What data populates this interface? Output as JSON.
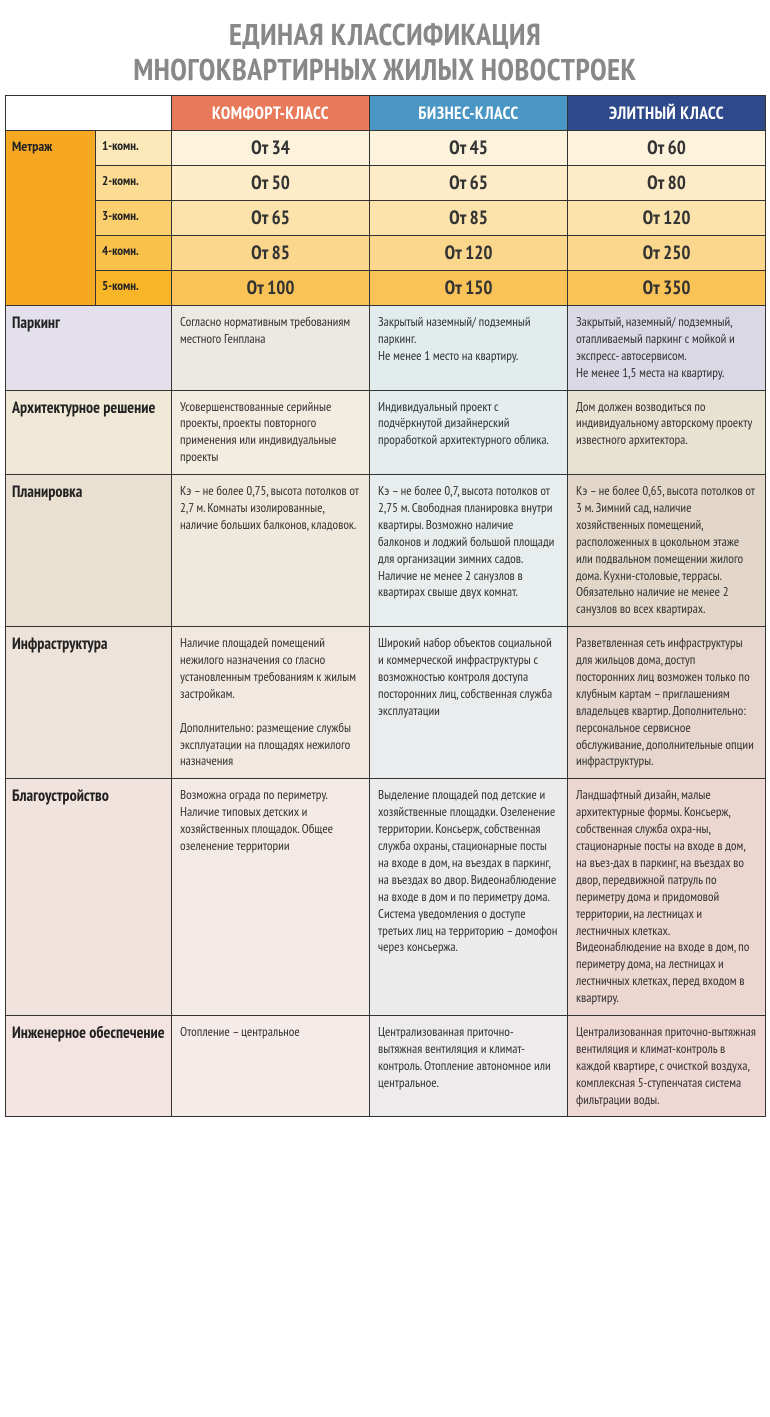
{
  "title_line1": "ЕДИНАЯ КЛАССИФИКАЦИЯ",
  "title_line2": "МНОГОКВАРТИРНЫХ ЖИЛЫХ НОВОСТРОЕК",
  "columns": {
    "comfort": {
      "label": "КОМФОРТ-КЛАСС",
      "header_bg": "#e8795a"
    },
    "business": {
      "label": "БИЗНЕС-КЛАСС",
      "header_bg": "#4a96c4"
    },
    "elite": {
      "label": "ЭЛИТНЫЙ КЛАСС",
      "header_bg": "#2e4a8a"
    }
  },
  "col_widths": {
    "side": 90,
    "sub": 76,
    "data": 198
  },
  "metrage": {
    "label": "Метраж",
    "side_bg": "#f7a823",
    "rows": [
      {
        "room": "1-комн.",
        "comfort": "От 34",
        "business": "От 45",
        "elite": "От 60",
        "bg_room": "#fce8b8",
        "bg_c": "#fdf3dd",
        "bg_b": "#fdf3dd",
        "bg_e": "#fdf3dd"
      },
      {
        "room": "2-комн.",
        "comfort": "От 50",
        "business": "От 65",
        "elite": "От 80",
        "bg_room": "#fcdc93",
        "bg_c": "#fdecc7",
        "bg_b": "#fdecc7",
        "bg_e": "#fdecc7"
      },
      {
        "room": "3-комн.",
        "comfort": "От 65",
        "business": "От 85",
        "elite": "От 120",
        "bg_room": "#fbcf6e",
        "bg_c": "#fce3ac",
        "bg_b": "#fce3ac",
        "bg_e": "#fce3ac"
      },
      {
        "room": "4-комн.",
        "comfort": "От 85",
        "business": "От 120",
        "elite": "От 250",
        "bg_room": "#fac24a",
        "bg_c": "#fbd78d",
        "bg_b": "#fbd78d",
        "bg_e": "#fbd78d"
      },
      {
        "room": "5-комн.",
        "comfort": "От 100",
        "business": "От 150",
        "elite": "От 350",
        "bg_room": "#f9b528",
        "bg_c": "#f9c357",
        "bg_b": "#f9c357",
        "bg_e": "#f9c357"
      }
    ]
  },
  "categories": [
    {
      "label": "Паркинг",
      "bg_label": "#e3e0ec",
      "bg_c": "#ece8e2",
      "bg_b": "#e3ecec",
      "bg_e": "#d9d8e4",
      "comfort": "Согласно нормативным требованиям местного Генплана",
      "business": "Закрытый наземный/ подземный паркинг.\nНе менее 1 место на квартиру.",
      "elite": "Закрытый, наземный/ подземный, отапливаемый паркинг с мойкой и экспресс- автосервисом.\nНе менее 1,5 места на квартиру."
    },
    {
      "label": "Архитектурное решение",
      "bg_label": "#f0e9d8",
      "bg_c": "#f2ede0",
      "bg_b": "#e4ecee",
      "bg_e": "#e8e2d2",
      "comfort": "Усовершенствованные серийные проекты, проекты повторного применения или индивидуальные проекты",
      "business": "Индивидуальный проект с подчёркнутой дизайнерский проработкой архитектурного облика.",
      "elite": "Дом должен возводиться по индивидуальному авторскому проекту известного архитектора."
    },
    {
      "label": "Планировка",
      "bg_label": "#eae0d2",
      "bg_c": "#efe8dc",
      "bg_b": "#e8eded",
      "bg_e": "#e2d7c8",
      "comfort": "Кэ – не более 0,75, высота потолков от 2,7 м. Комнаты изолированные, наличие больших балконов, кладовок.",
      "business": "Кэ – не более 0,7, высота потолков от 2,75 м. Свободная планировка внутри квартиры. Возможно наличие балконов и лоджий большой площади для организации зимних садов. Наличие не менее 2 санузлов в квартирах свыше двух комнат.",
      "elite": "Кэ – не более 0,65, высота потолков от 3 м. Зимний сад, наличие хозяйственных помещений, расположенных в цокольном этаже или подвальном помещении жилого дома. Кухни-столовые, террасы. Обязательно наличие не менее 2 санузлов во всех квартирах."
    },
    {
      "label": "Инфраструктура",
      "bg_label": "#eee3da",
      "bg_c": "#f1e9e1",
      "bg_b": "#eaeced",
      "bg_e": "#e6d6cd",
      "comfort": "Наличие площадей помещений нежилого назначения со гласно установленным требованиям к жилым застройкам.\n\nДополнительно: размещение службы эксплуатации на площадях нежилого назначения",
      "business": "Широкий набор объектов социальной и коммерческой инфраструктуры с возможностью контроля доступа посторонних лиц, собственная служба эксплуатации",
      "elite": "Разветвленная сеть инфраструктуры для жильцов дома, доступ посторонних лиц возможен только по клубным картам – приглашениям владельцев квартир. Дополнительно: персональное сервисное обслуживание, дополнительные опции инфраструктуры."
    },
    {
      "label": "Благоустройство",
      "bg_label": "#f1e3de",
      "bg_c": "#f3eae5",
      "bg_b": "#ecebec",
      "bg_e": "#ebd6d0",
      "comfort": "Возможна ограда по периметру. Наличие типовых детских и хозяйственных площадок. Общее озеленение территории",
      "business": "Выделение площадей под детские и хозяйственные площадки. Озеленение территории. Консьерж, собственная служба охраны, стационарные посты на входе в дом, на въездах в паркинг, на въездах во двор. Видеонаблюдение на входе в дом и по периметру дома. Система уведомления о доступе третьих лиц на территорию – домофон через консьержа.",
      "elite": "Ландшафтный дизайн, малые архитектурные формы. Консьерж, собственная служба охра-ны, стационарные посты на входе в дом, на въез-дах в паркинг, на въездах во двор, передвижной патруль по периметру дома и придомовой территории, на лестницах и лестничных клетках. Видеонаблюдение на входе в дом, по периметру дома, на лестницах и лестничных клетках, перед входом в квартиру."
    },
    {
      "label": "Инженерное обеспечение",
      "bg_label": "#f3e4e2",
      "bg_c": "#f5ebe8",
      "bg_b": "#eeebec",
      "bg_e": "#efd7d4",
      "comfort": "Отопление – центральное",
      "business": " Централизованная приточно- вытяжная вентиляция и климат- контроль. Отопление автономное или центральное.",
      "elite": "Централизованная приточно-вытяжная вентиляция и климат-контроль в каждой квартире, с очисткой воздуха, комплексная 5-ступенчатая система фильтрации воды."
    }
  ]
}
